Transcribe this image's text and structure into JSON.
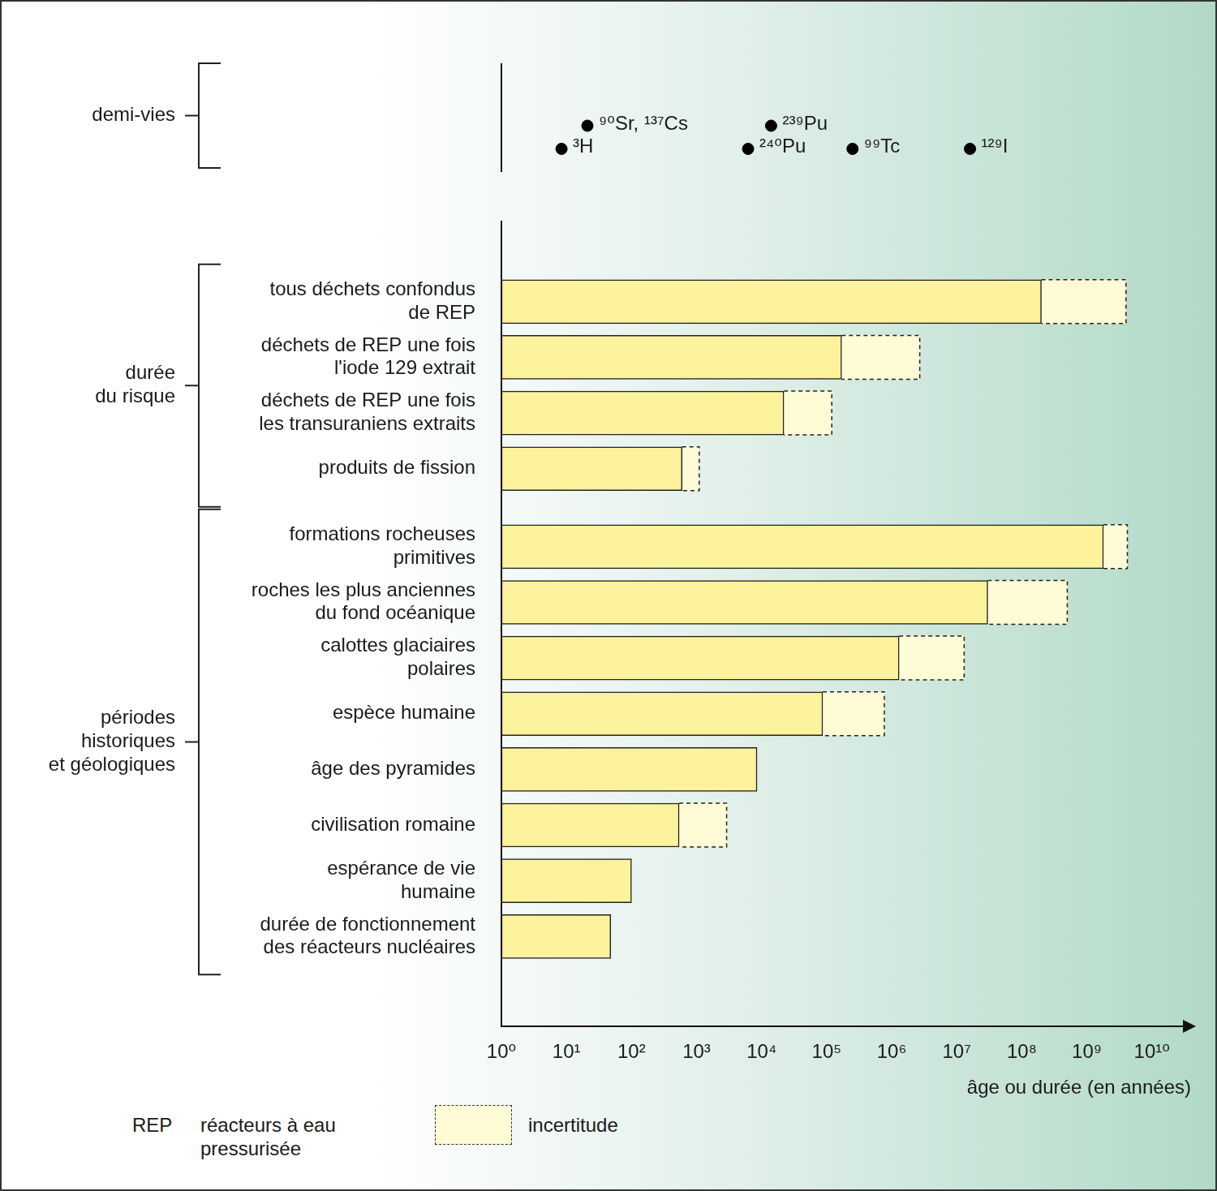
{
  "chart_data": {
    "type": "bar",
    "orientation": "horizontal",
    "log": "x",
    "x_label": "âge ou durée (en années)",
    "xlim": [
      1,
      40000000000
    ],
    "xticks": [
      {
        "value": 1,
        "label": "10⁰"
      },
      {
        "value": 10,
        "label": "10¹"
      },
      {
        "value": 100,
        "label": "10²"
      },
      {
        "value": 1000,
        "label": "10³"
      },
      {
        "value": 10000,
        "label": "10⁴"
      },
      {
        "value": 100000,
        "label": "10⁵"
      },
      {
        "value": 1000000,
        "label": "10⁶"
      },
      {
        "value": 10000000,
        "label": "10⁷"
      },
      {
        "value": 100000000,
        "label": "10⁸"
      },
      {
        "value": 1000000000,
        "label": "10⁹"
      },
      {
        "value": 10000000000,
        "label": "10¹⁰"
      }
    ],
    "grid": false,
    "color": "#fdf29c",
    "uncertainty_color": "#fefbd6",
    "uncertainty_label": "incertitude",
    "half_lives": {
      "label": "demi-vies",
      "type": "scatter",
      "color": "#000000",
      "categories": [
        "³H",
        "⁹⁰Sr, ¹³⁷Cs",
        "²⁴⁰Pu",
        "²³⁹Pu",
        "⁹⁹Tc",
        "¹²⁹I"
      ],
      "values": [
        8.4,
        21,
        6200,
        14000,
        250000,
        16000000
      ]
    },
    "groups": [
      {
        "label": [
          "durée",
          "du risque"
        ],
        "categories": [
          [
            "tous déchets confondus",
            "de REP"
          ],
          [
            "déchets de REP une fois",
            "l'iode 129 extrait"
          ],
          [
            "déchets de REP une fois",
            "les transuraniens extraits"
          ],
          "produits de fission"
        ],
        "values": [
          200000000,
          170000,
          22000,
          600
        ],
        "uncertainty": [
          4000000000,
          2700000,
          120000,
          1100
        ]
      },
      {
        "label": [
          "périodes",
          "historiques",
          "et géologiques"
        ],
        "categories": [
          [
            "formations rocheuses",
            "primitives"
          ],
          [
            "roches les plus anciennes",
            "du fond océanique"
          ],
          [
            "calottes glaciaires",
            "polaires"
          ],
          "espèce humaine",
          "âge des pyramides",
          "civilisation romaine",
          [
            "espérance de vie",
            "humaine"
          ],
          [
            "durée de fonctionnement",
            "des réacteurs nucléaires"
          ]
        ],
        "values": [
          1800000000,
          30000000,
          1300000,
          87000,
          8500,
          540,
          100,
          48
        ],
        "uncertainty": [
          4200000000,
          500000000,
          13000000,
          770000,
          null,
          2900,
          null,
          null
        ]
      }
    ],
    "abbreviations": [
      {
        "abbr": "REP",
        "text": [
          "réacteurs à eau",
          "pressurisée"
        ]
      }
    ]
  }
}
